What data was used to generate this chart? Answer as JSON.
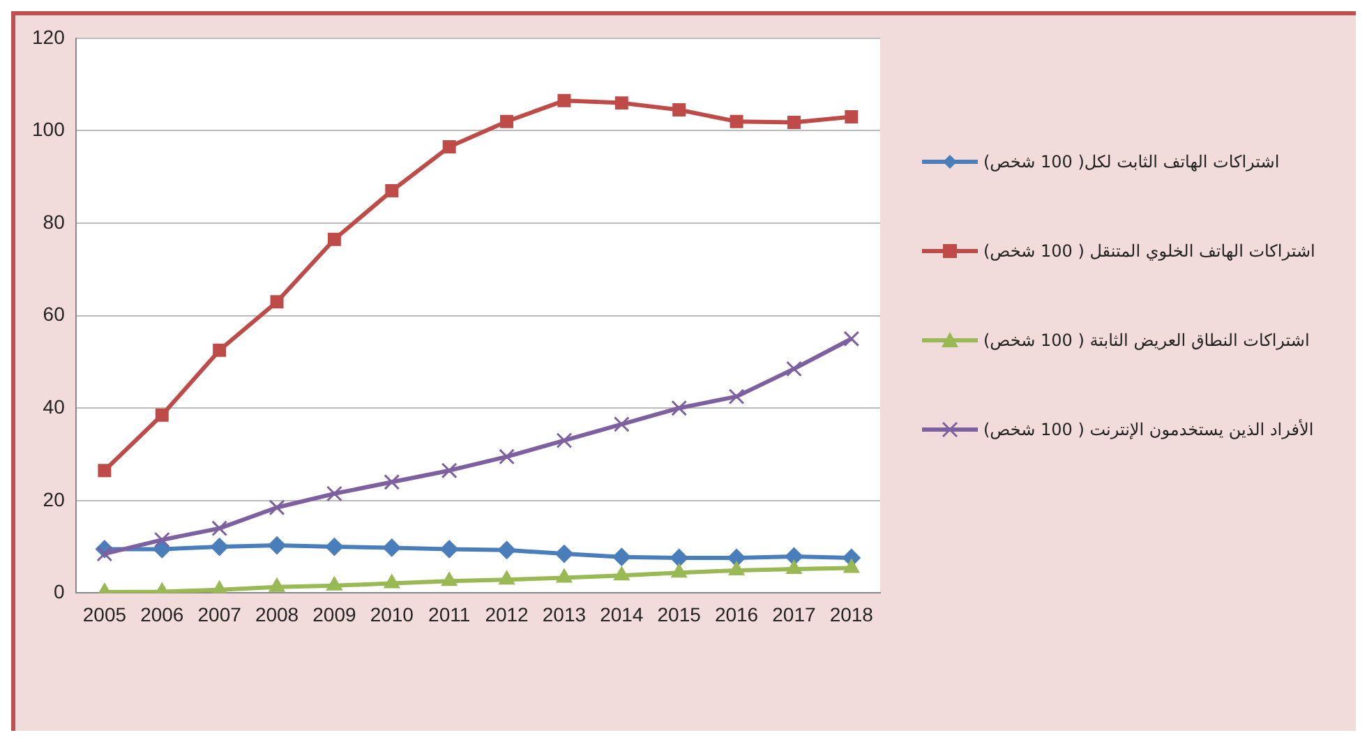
{
  "chart_data": {
    "type": "line",
    "categories": [
      "2005",
      "2006",
      "2007",
      "2008",
      "2009",
      "2010",
      "2011",
      "2012",
      "2013",
      "2014",
      "2015",
      "2016",
      "2017",
      "2018"
    ],
    "series": [
      {
        "name": "اشتراكات الهاتف الثابت لكل( 100 شخص)",
        "color": "#4a7ebb",
        "marker": "diamond",
        "values": [
          9.5,
          9.5,
          10,
          10.3,
          10,
          9.8,
          9.5,
          9.3,
          8.5,
          7.8,
          7.6,
          7.6,
          7.9,
          7.6
        ]
      },
      {
        "name": "اشتراكات الهاتف الخلوي المتنقل ( 100 شخص)",
        "color": "#be4b48",
        "marker": "square",
        "values": [
          26.5,
          38.5,
          52.5,
          63,
          76.5,
          87,
          96.5,
          102,
          106.5,
          106,
          104.5,
          102,
          101.8,
          103
        ]
      },
      {
        "name": "اشتراكات النطاق العريض الثابتة ( 100 شخص)",
        "color": "#98b954",
        "marker": "triangle",
        "values": [
          0.2,
          0.3,
          0.7,
          1.3,
          1.6,
          2.1,
          2.6,
          2.9,
          3.3,
          3.8,
          4.4,
          4.9,
          5.2,
          5.4
        ]
      },
      {
        "name": "الأفراد الذين يستخدمون الإنترنت ( 100 شخص)",
        "color": "#7d60a0",
        "marker": "cross",
        "values": [
          8.5,
          11.5,
          14,
          18.5,
          21.5,
          24,
          26.5,
          29.5,
          33,
          36.5,
          40,
          42.5,
          48.5,
          55
        ]
      }
    ],
    "ylim": [
      0,
      120
    ],
    "yticks": [
      0,
      20,
      40,
      60,
      80,
      100,
      120
    ],
    "grid": "y",
    "legend": "right"
  }
}
